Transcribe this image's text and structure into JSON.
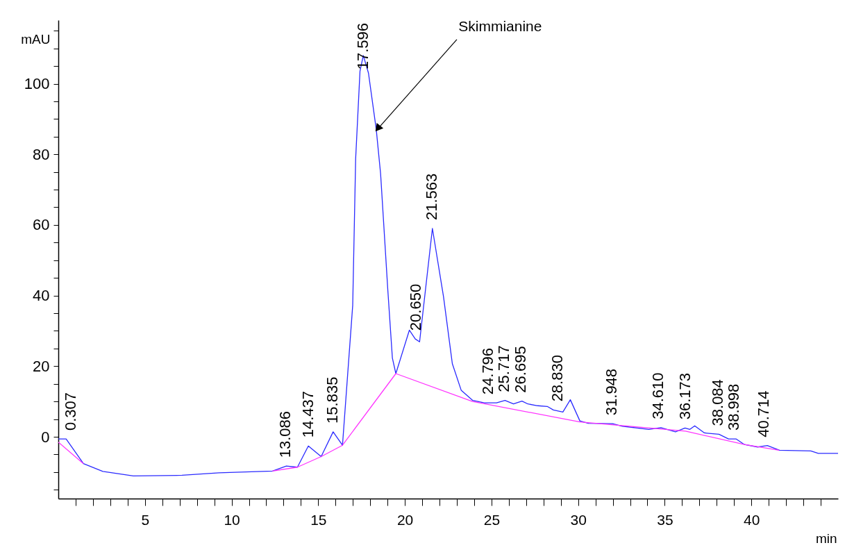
{
  "chart_data": {
    "type": "line",
    "xlabel": "min",
    "ylabel": "mAU",
    "xlim": [
      0,
      45
    ],
    "ylim": [
      -17.5,
      118
    ],
    "xticks": [
      {
        "value": 1,
        "label": null
      },
      {
        "value": 2,
        "label": null
      },
      {
        "value": 3,
        "label": null
      },
      {
        "value": 4,
        "label": null
      },
      5,
      {
        "value": 6,
        "label": null
      },
      {
        "value": 7,
        "label": null
      },
      {
        "value": 8,
        "label": null
      },
      {
        "value": 9,
        "label": null
      },
      10,
      {
        "value": 11,
        "label": null
      },
      {
        "value": 12,
        "label": null
      },
      {
        "value": 13,
        "label": null
      },
      {
        "value": 14,
        "label": null
      },
      15,
      {
        "value": 16,
        "label": null
      },
      {
        "value": 17,
        "label": null
      },
      {
        "value": 18,
        "label": null
      },
      {
        "value": 19,
        "label": null
      },
      20,
      {
        "value": 21,
        "label": null
      },
      {
        "value": 22,
        "label": null
      },
      {
        "value": 23,
        "label": null
      },
      {
        "value": 24,
        "label": null
      },
      25,
      {
        "value": 26,
        "label": null
      },
      {
        "value": 27,
        "label": null
      },
      {
        "value": 28,
        "label": null
      },
      {
        "value": 29,
        "label": null
      },
      30,
      {
        "value": 31,
        "label": null
      },
      {
        "value": 32,
        "label": null
      },
      {
        "value": 33,
        "label": null
      },
      {
        "value": 34,
        "label": null
      },
      35,
      {
        "value": 36,
        "label": null
      },
      {
        "value": 37,
        "label": null
      },
      {
        "value": 38,
        "label": null
      },
      {
        "value": 39,
        "label": null
      },
      40,
      {
        "value": 41,
        "label": null
      },
      {
        "value": 42,
        "label": null
      },
      {
        "value": 43,
        "label": null
      },
      {
        "value": 44,
        "label": null
      }
    ],
    "yticks": [
      {
        "value": -15,
        "label": null
      },
      {
        "value": -10,
        "label": null
      },
      {
        "value": -5,
        "label": null
      },
      0,
      {
        "value": 5,
        "label": null
      },
      {
        "value": 10,
        "label": null
      },
      {
        "value": 15,
        "label": null
      },
      20,
      {
        "value": 25,
        "label": null
      },
      {
        "value": 30,
        "label": null
      },
      {
        "value": 35,
        "label": null
      },
      40,
      {
        "value": 45,
        "label": null
      },
      {
        "value": 50,
        "label": null
      },
      {
        "value": 55,
        "label": null
      },
      60,
      {
        "value": 65,
        "label": null
      },
      {
        "value": 70,
        "label": null
      },
      {
        "value": 75,
        "label": null
      },
      80,
      {
        "value": 85,
        "label": null
      },
      {
        "value": 90,
        "label": null
      },
      {
        "value": 95,
        "label": null
      },
      100,
      {
        "value": 105,
        "label": null
      },
      {
        "value": 110,
        "label": null
      },
      {
        "value": 115,
        "label": null
      }
    ],
    "grid": false,
    "legend": false,
    "marker": "none",
    "line_style": "solid",
    "series": [
      {
        "color": "#2a2aff",
        "x": [
          0,
          0.45,
          1.45,
          2.57,
          4.33,
          7.14,
          9.28,
          12.36,
          13.16,
          13.8,
          14.43,
          15.17,
          15.86,
          16.4,
          16.99,
          17.16,
          17.41,
          17.6,
          17.9,
          18.35,
          18.6,
          19.02,
          19.28,
          19.48,
          20.26,
          20.6,
          20.85,
          21.59,
          22.23,
          22.74,
          23.25,
          23.92,
          24.59,
          25.29,
          25.78,
          26.27,
          26.76,
          27.1,
          27.66,
          28.22,
          28.57,
          29.12,
          29.55,
          30.1,
          30.59,
          31.99,
          32.55,
          34.08,
          34.78,
          35.62,
          36.17,
          36.45,
          36.73,
          37.29,
          38.13,
          38.68,
          39.11,
          39.6,
          40.36,
          40.92,
          41.62,
          43.43,
          43.86,
          45
        ],
        "values": [
          -0.6,
          -0.6,
          -7.6,
          -9.8,
          -11.1,
          -10.9,
          -10.2,
          -9.7,
          -8.3,
          -8.6,
          -2.6,
          -5.6,
          1.4,
          -2.4,
          37.2,
          78.7,
          103.5,
          108,
          103,
          87,
          74.5,
          41.3,
          22.3,
          17.9,
          30.2,
          27.7,
          26.9,
          59,
          39.7,
          20.7,
          13.2,
          10.3,
          9.6,
          9.6,
          10.3,
          9.3,
          10.1,
          9.3,
          8.8,
          8.6,
          7.6,
          7,
          10.5,
          4.5,
          3.8,
          3.7,
          3,
          2.1,
          2.6,
          1.4,
          2.5,
          2.1,
          3.1,
          1.1,
          0.7,
          -0.6,
          -0.6,
          -2.2,
          -2.9,
          -2.5,
          -3.8,
          -4,
          -4.7,
          -4.7
        ]
      },
      {
        "color": "#ff33ff",
        "x": [
          0,
          1.45,
          7,
          12.36,
          13.8,
          15.17,
          16.4,
          19.48,
          23.9,
          30.1,
          36.2,
          39.6,
          41.6
        ],
        "values": [
          -1.5,
          -7.6,
          null,
          -9.7,
          -8.6,
          -5.6,
          -2.4,
          17.9,
          10,
          4.2,
          1.6,
          -2.2,
          -3.8
        ]
      }
    ],
    "annotations": [
      {
        "text": "Skimmianine",
        "x": 18.4,
        "y": 87
      },
      {
        "text": "0.307",
        "x": 0.307,
        "y": -0.6
      },
      {
        "text": "13.086",
        "x": 13.086,
        "y": -8.3
      },
      {
        "text": "14.437",
        "x": 14.437,
        "y": -2.6
      },
      {
        "text": "15.835",
        "x": 15.835,
        "y": 1.4
      },
      {
        "text": "17.596",
        "x": 17.596,
        "y": 108
      },
      {
        "text": "20.650",
        "x": 20.65,
        "y": 27.7
      },
      {
        "text": "21.563",
        "x": 21.563,
        "y": 59
      },
      {
        "text": "24.796",
        "x": 24.796,
        "y": 9.6
      },
      {
        "text": "25.717",
        "x": 25.717,
        "y": 10.3
      },
      {
        "text": "26.695",
        "x": 26.695,
        "y": 10.1
      },
      {
        "text": "28.830",
        "x": 28.83,
        "y": 7.6
      },
      {
        "text": "31.948",
        "x": 31.948,
        "y": 3.7
      },
      {
        "text": "34.610",
        "x": 34.61,
        "y": 2.6
      },
      {
        "text": "36.173",
        "x": 36.173,
        "y": 2.5
      },
      {
        "text": "38.084",
        "x": 38.084,
        "y": 0.7
      },
      {
        "text": "38.998",
        "x": 38.998,
        "y": -0.6
      },
      {
        "text": "40.714",
        "x": 40.714,
        "y": -2.5
      }
    ]
  }
}
